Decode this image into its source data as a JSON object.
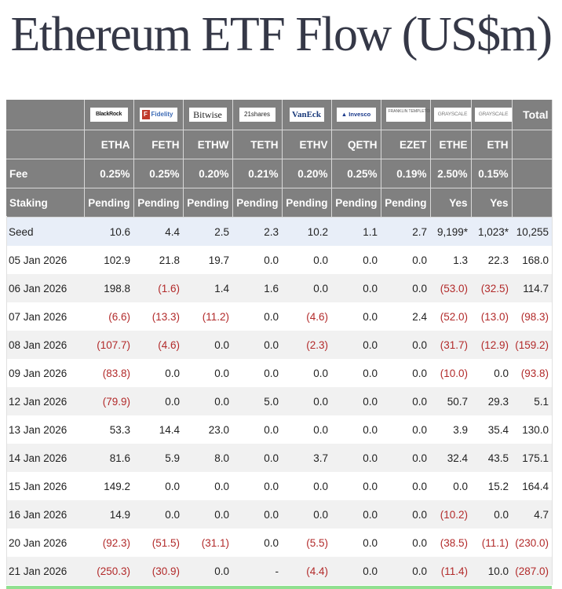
{
  "title": "Ethereum ETF Flow (US$m)",
  "header": {
    "issuers": [
      {
        "name": "BlackRock",
        "logo": "BlackRock"
      },
      {
        "name": "Fidelity",
        "logo": "Fidelity"
      },
      {
        "name": "Bitwise",
        "logo": "Bitwise"
      },
      {
        "name": "21shares",
        "logo": "21shares"
      },
      {
        "name": "VanEck",
        "logo": "VanEck"
      },
      {
        "name": "Invesco",
        "logo": "Invesco"
      },
      {
        "name": "Franklin Templeton",
        "logo": "FRANKLIN TEMPLETON"
      },
      {
        "name": "Grayscale",
        "logo": "GRAYSCALE"
      },
      {
        "name": "Grayscale",
        "logo": "GRAYSCALE"
      }
    ],
    "total_label": "Total",
    "tickers": [
      "ETHA",
      "FETH",
      "ETHW",
      "TETH",
      "ETHV",
      "QETH",
      "EZET",
      "ETHE",
      "ETH"
    ],
    "fee_label": "Fee",
    "fees": [
      "0.25%",
      "0.25%",
      "0.20%",
      "0.21%",
      "0.20%",
      "0.25%",
      "0.19%",
      "2.50%",
      "0.15%"
    ],
    "staking_label": "Staking",
    "staking": [
      "Pending",
      "Pending",
      "Pending",
      "Pending",
      "Pending",
      "Pending",
      "Pending",
      "Yes",
      "Yes"
    ]
  },
  "rows": [
    {
      "date": "Seed",
      "values": [
        "10.6",
        "4.4",
        "2.5",
        "2.3",
        "10.2",
        "1.1",
        "2.7",
        "9,199*",
        "1,023*",
        "10,255"
      ]
    },
    {
      "date": "05 Jan 2026",
      "values": [
        "102.9",
        "21.8",
        "19.7",
        "0.0",
        "0.0",
        "0.0",
        "0.0",
        "1.3",
        "22.3",
        "168.0"
      ]
    },
    {
      "date": "06 Jan 2026",
      "values": [
        "198.8",
        "(1.6)",
        "1.4",
        "1.6",
        "0.0",
        "0.0",
        "0.0",
        "(53.0)",
        "(32.5)",
        "114.7"
      ]
    },
    {
      "date": "07 Jan 2026",
      "values": [
        "(6.6)",
        "(13.3)",
        "(11.2)",
        "0.0",
        "(4.6)",
        "0.0",
        "2.4",
        "(52.0)",
        "(13.0)",
        "(98.3)"
      ]
    },
    {
      "date": "08 Jan 2026",
      "values": [
        "(107.7)",
        "(4.6)",
        "0.0",
        "0.0",
        "(2.3)",
        "0.0",
        "0.0",
        "(31.7)",
        "(12.9)",
        "(159.2)"
      ]
    },
    {
      "date": "09 Jan 2026",
      "values": [
        "(83.8)",
        "0.0",
        "0.0",
        "0.0",
        "0.0",
        "0.0",
        "0.0",
        "(10.0)",
        "0.0",
        "(93.8)"
      ]
    },
    {
      "date": "12 Jan 2026",
      "values": [
        "(79.9)",
        "0.0",
        "0.0",
        "5.0",
        "0.0",
        "0.0",
        "0.0",
        "50.7",
        "29.3",
        "5.1"
      ]
    },
    {
      "date": "13 Jan 2026",
      "values": [
        "53.3",
        "14.4",
        "23.0",
        "0.0",
        "0.0",
        "0.0",
        "0.0",
        "3.9",
        "35.4",
        "130.0"
      ]
    },
    {
      "date": "14 Jan 2026",
      "values": [
        "81.6",
        "5.9",
        "8.0",
        "0.0",
        "3.7",
        "0.0",
        "0.0",
        "32.4",
        "43.5",
        "175.1"
      ]
    },
    {
      "date": "15 Jan 2026",
      "values": [
        "149.2",
        "0.0",
        "0.0",
        "0.0",
        "0.0",
        "0.0",
        "0.0",
        "0.0",
        "15.2",
        "164.4"
      ]
    },
    {
      "date": "16 Jan 2026",
      "values": [
        "14.9",
        "0.0",
        "0.0",
        "0.0",
        "0.0",
        "0.0",
        "0.0",
        "(10.2)",
        "0.0",
        "4.7"
      ]
    },
    {
      "date": "20 Jan 2026",
      "values": [
        "(92.3)",
        "(51.5)",
        "(31.1)",
        "0.0",
        "(5.5)",
        "0.0",
        "0.0",
        "(38.5)",
        "(11.1)",
        "(230.0)"
      ]
    },
    {
      "date": "21 Jan 2026",
      "values": [
        "(250.3)",
        "(30.9)",
        "0.0",
        "-",
        "(4.4)",
        "0.0",
        "0.0",
        "(11.4)",
        "10.0",
        "(287.0)"
      ]
    }
  ],
  "colors": {
    "header_bg": "#808080",
    "negative": "#b22a2a",
    "seed_row_bg": "#e8eef8",
    "stripe_bg": "#f1f1f1",
    "title": "#353847",
    "bottom_bar": "#90e090"
  }
}
